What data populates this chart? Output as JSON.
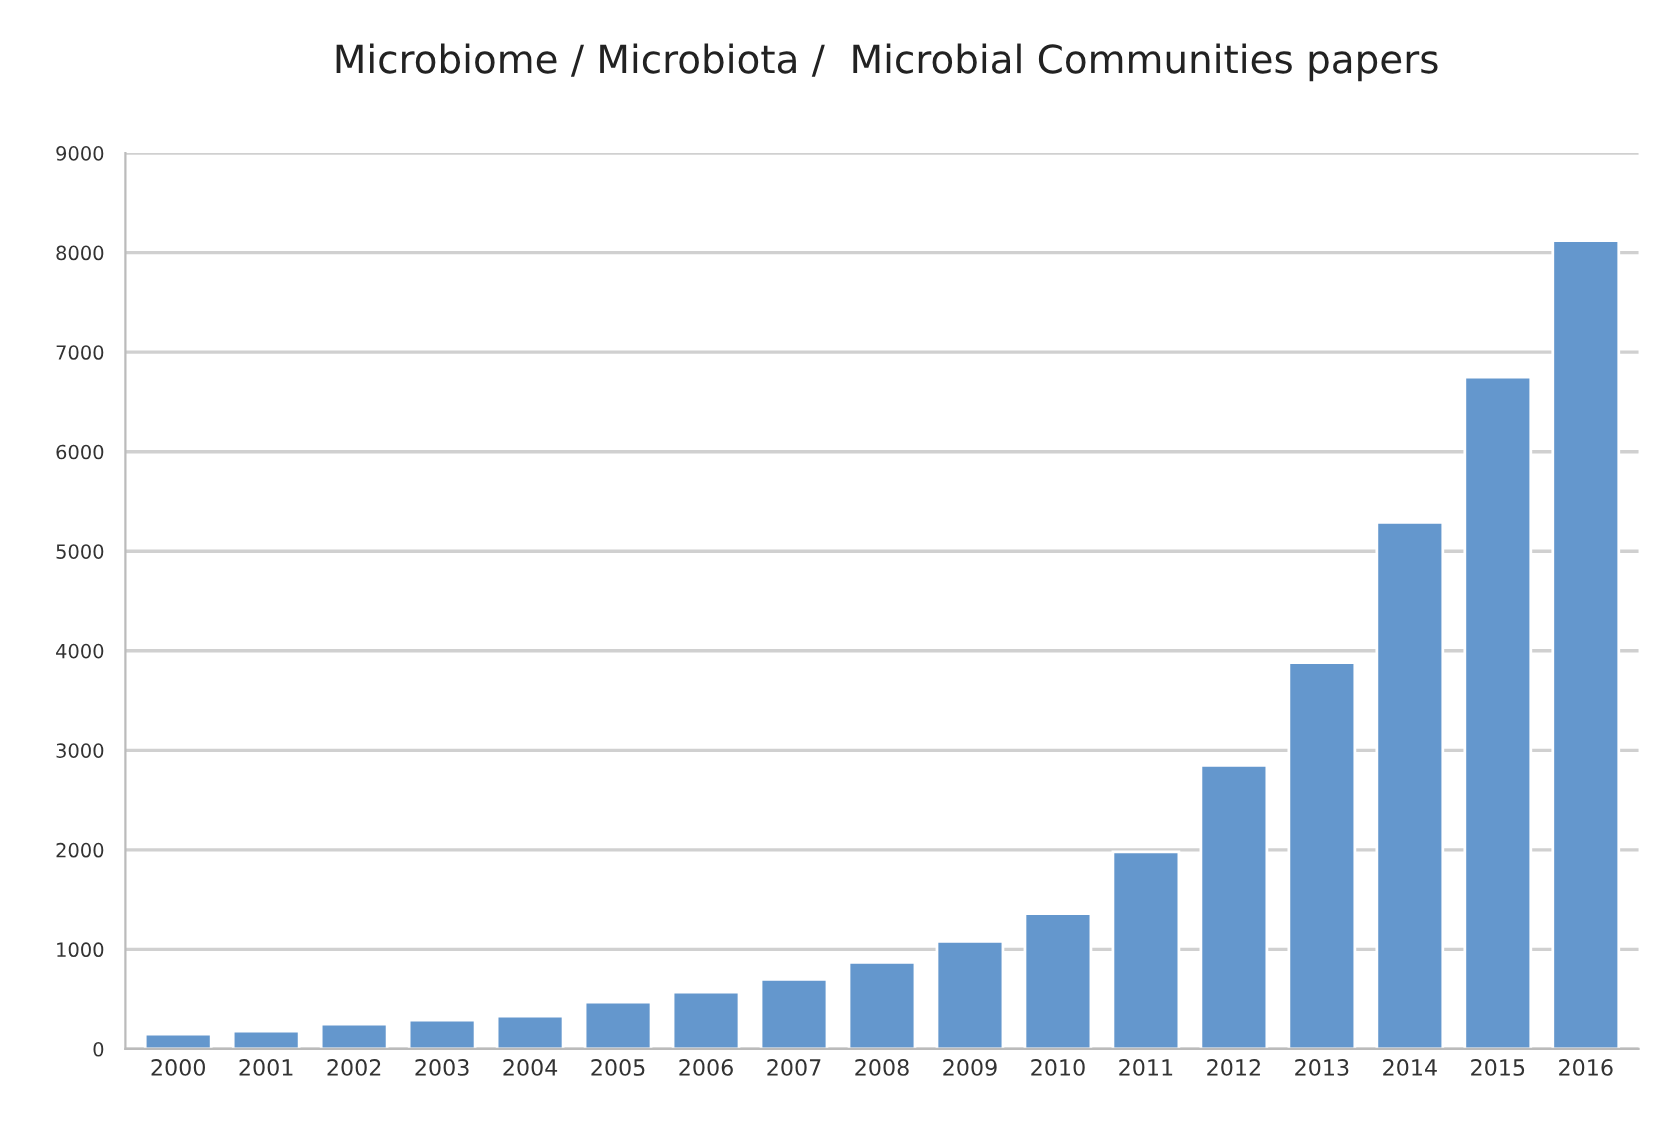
{
  "chart_data": {
    "type": "bar",
    "title": "Microbiome / Microbiota /  Microbial Communities papers",
    "categories": [
      "2000",
      "2001",
      "2002",
      "2003",
      "2004",
      "2005",
      "2006",
      "2007",
      "2008",
      "2009",
      "2010",
      "2011",
      "2012",
      "2013",
      "2014",
      "2015",
      "2016"
    ],
    "values": [
      150,
      180,
      250,
      290,
      330,
      470,
      570,
      700,
      870,
      1080,
      1360,
      1980,
      2850,
      3880,
      5290,
      6750,
      8120
    ],
    "color": "#6497cd",
    "ylim": [
      0,
      9000
    ],
    "yticks": [
      0,
      1000,
      2000,
      3000,
      4000,
      5000,
      6000,
      7000,
      8000,
      9000
    ],
    "grid": "y"
  }
}
